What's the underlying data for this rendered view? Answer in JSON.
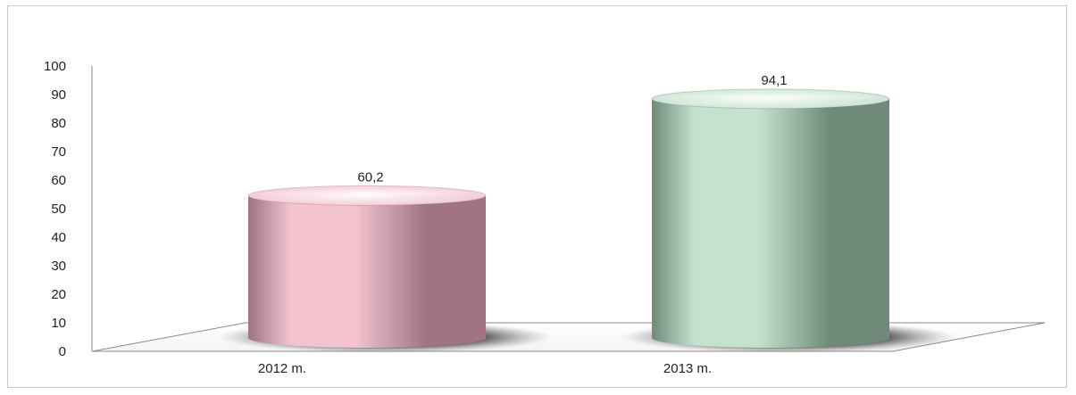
{
  "chart_data": {
    "type": "bar",
    "style": "3d-cylinder",
    "categories": [
      "2012 m.",
      "2013 m."
    ],
    "values": [
      60.2,
      94.1
    ],
    "data_labels": [
      "60,2",
      "94,1"
    ],
    "y_ticks": [
      "0",
      "10",
      "20",
      "30",
      "40",
      "50",
      "60",
      "70",
      "80",
      "90",
      "100"
    ],
    "ylim": [
      0,
      100
    ],
    "grid": false,
    "legend": "none",
    "title": "",
    "xlabel": "",
    "ylabel": "",
    "colors": {
      "bar_1_light": "#f3c3d0",
      "bar_1_dark": "#a07482",
      "bar_2_light": "#c5e2cf",
      "bar_2_dark": "#6f8a79"
    }
  }
}
